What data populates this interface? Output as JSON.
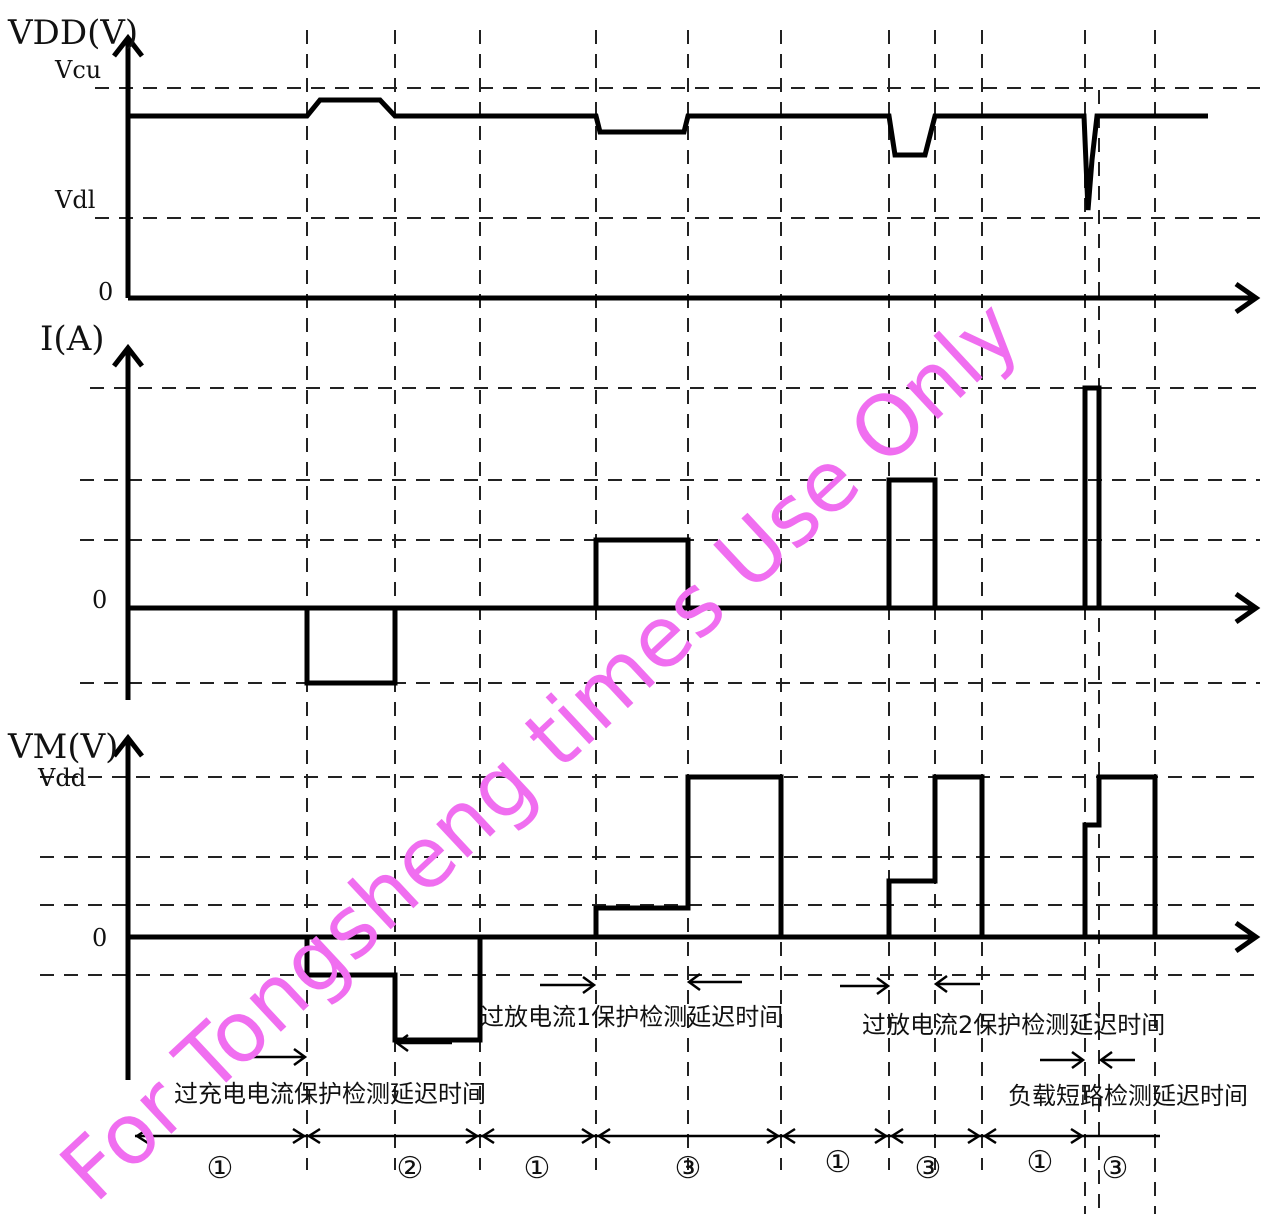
{
  "axes": {
    "vdd": {
      "title": "VDD(V)",
      "vcu": "Vcu",
      "vdl": "Vdl",
      "zero": "0"
    },
    "current": {
      "title": "I(A)",
      "zero": "0"
    },
    "vm": {
      "title": "VM(V)",
      "vdd": "Vdd",
      "zero": "0"
    }
  },
  "annotations": {
    "overcharge_delay": "过充电电流保护检测延迟时间",
    "overdischarge1_delay": "过放电流1保护检测延迟时间",
    "overdischarge2_delay": "过放电流2保护检测延迟时间",
    "short_circuit_delay": "负载短路检测延迟时间"
  },
  "states": [
    "①",
    "②",
    "①",
    "③",
    "①",
    "③",
    "①",
    "③"
  ],
  "watermark": "For Tongsheng times Use Only"
}
